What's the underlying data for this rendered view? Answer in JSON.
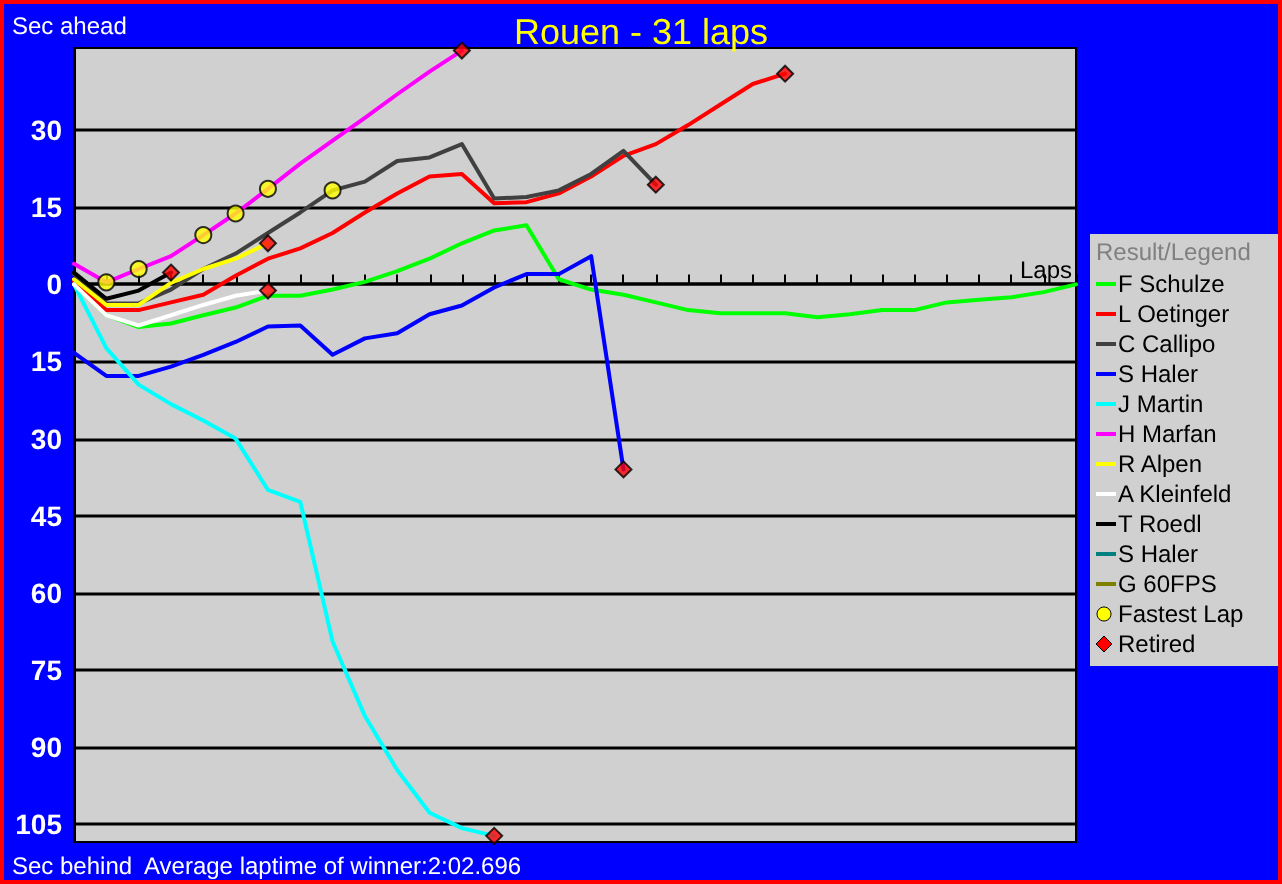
{
  "chart_data": {
    "type": "line",
    "title": "Rouen - 31 laps",
    "ylabel": "Sec ahead",
    "xlabel": "Laps",
    "legend_title": "Result/Legend",
    "annotations": [
      "Sec behind",
      "Average laptime of winner:2:02.696"
    ],
    "categories": [
      null,
      null,
      null,
      null,
      null,
      null,
      null,
      null,
      null,
      null,
      null,
      null,
      null,
      null,
      null,
      null,
      null,
      null,
      null,
      null,
      null,
      null,
      null,
      null,
      null,
      null,
      null,
      null,
      null,
      null,
      null,
      null
    ],
    "series": [
      {
        "name": "F Schulze",
        "color": "#00ff00",
        "values": [
          0,
          -6,
          -8.3,
          -7.6,
          -6,
          -4.5,
          -2.2,
          -2.2,
          -1,
          0.5,
          2.6,
          5,
          8,
          10.5,
          11.5,
          1,
          -1,
          -2,
          -3.5,
          -5,
          -5.6,
          -5.6,
          -5.6,
          -6.4,
          -5.8,
          -5,
          -5,
          -3.5,
          -3,
          -2.5,
          -1.5,
          0
        ]
      },
      {
        "name": "L Oetinger",
        "color": "#ff0000",
        "values": [
          0.6,
          -5,
          -5,
          -3.5,
          -2,
          1.7,
          5,
          7,
          10,
          14,
          17.7,
          21,
          21.5,
          15.8,
          16,
          17.7,
          21,
          25,
          27.3,
          31,
          35,
          39,
          41,
          null,
          null,
          null,
          null,
          null,
          null,
          null,
          null,
          null
        ]
      },
      {
        "name": "C Callipo",
        "color": "#404040",
        "values": [
          2,
          -3.7,
          -3.7,
          -1,
          3,
          6,
          10,
          14,
          18.3,
          20,
          24,
          24.7,
          27.3,
          16.7,
          17,
          18.3,
          21.5,
          26,
          19.4,
          null,
          null,
          null,
          null,
          null,
          null,
          null,
          null,
          null,
          null,
          null,
          null,
          null
        ]
      },
      {
        "name": "S Haler",
        "color": "#0000ff",
        "values": [
          -13.3,
          -17.8,
          -17.8,
          -16,
          -13.7,
          -11.2,
          -8.2,
          -8,
          -13.7,
          -10.5,
          -9.5,
          -5.8,
          -4.1,
          -0.6,
          2,
          2,
          5.5,
          -36,
          null,
          null,
          null,
          null,
          null,
          null,
          null,
          null,
          null,
          null,
          null,
          null,
          null,
          null
        ]
      },
      {
        "name": "J Martin",
        "color": "#00ffff",
        "values": [
          0,
          -12.4,
          -19.5,
          -23.3,
          -26.5,
          -30,
          -40,
          -42.3,
          -69.5,
          -84,
          -94.5,
          -102.8,
          -105.8,
          -107.3,
          null,
          null,
          null,
          null,
          null,
          null,
          null,
          null,
          null,
          null,
          null,
          null,
          null,
          null,
          null,
          null,
          null,
          null
        ]
      },
      {
        "name": "H Marfan",
        "color": "#ff00ff",
        "values": [
          4,
          0.4,
          3,
          5.5,
          9.6,
          13.8,
          18.6,
          23.5,
          28,
          32.4,
          37,
          41.4,
          45.5,
          null,
          null,
          null,
          null,
          null,
          null,
          null,
          null,
          null,
          null,
          null,
          null,
          null,
          null,
          null,
          null,
          null,
          null,
          null
        ]
      },
      {
        "name": "R Alpen",
        "color": "#ffff00",
        "values": [
          1,
          -4,
          -4,
          0.3,
          3,
          5,
          8,
          null,
          null,
          null,
          null,
          null,
          null,
          null,
          null,
          null,
          null,
          null,
          null,
          null,
          null,
          null,
          null,
          null,
          null,
          null,
          null,
          null,
          null,
          null,
          null,
          null
        ]
      },
      {
        "name": "A Kleinfeld",
        "color": "#ffffff",
        "values": [
          0,
          -6,
          -8,
          -6,
          -4,
          -2.2,
          -1.2,
          null,
          null,
          null,
          null,
          null,
          null,
          null,
          null,
          null,
          null,
          null,
          null,
          null,
          null,
          null,
          null,
          null,
          null,
          null,
          null,
          null,
          null,
          null,
          null,
          null
        ]
      },
      {
        "name": "T Roedl",
        "color": "#000000",
        "values": [
          2.3,
          -2.8,
          -1.2,
          2.3,
          null,
          null,
          null,
          null,
          null,
          null,
          null,
          null,
          null,
          null,
          null,
          null,
          null,
          null,
          null,
          null,
          null,
          null,
          null,
          null,
          null,
          null,
          null,
          null,
          null,
          null,
          null,
          null
        ]
      },
      {
        "name": "S Haler",
        "color": "#008080",
        "values": [
          null,
          null,
          null,
          null,
          null,
          null,
          null,
          null,
          null,
          null,
          null,
          null,
          null,
          null,
          null,
          null,
          null,
          null,
          null,
          null,
          null,
          null,
          null,
          null,
          null,
          null,
          null,
          null,
          null,
          null,
          null,
          null
        ]
      },
      {
        "name": "G 60FPS",
        "color": "#808000",
        "values": [
          null,
          null,
          null,
          null,
          null,
          null,
          null,
          null,
          null,
          null,
          null,
          null,
          null,
          null,
          null,
          null,
          null,
          null,
          null,
          null,
          null,
          null,
          null,
          null,
          null,
          null,
          null,
          null,
          null,
          null,
          null,
          null
        ]
      },
      {
        "name": "Fastest Lap",
        "type": "scatter",
        "marker": "circle",
        "color": "#ffff00",
        "values": [
          null,
          0.4,
          3,
          null,
          9.6,
          13.8,
          18.6,
          null,
          18.3,
          null,
          null,
          null,
          null,
          null,
          null,
          null,
          null,
          null,
          null,
          null,
          null,
          null,
          null,
          null,
          null,
          null,
          null,
          null,
          null,
          null,
          null,
          null
        ]
      },
      {
        "name": "Retired",
        "type": "scatter",
        "marker": "diamond",
        "color": "#ff0000",
        "values": [
          null,
          null,
          null,
          2.3,
          null,
          null,
          8,
          null,
          null,
          null,
          null,
          null,
          45.5,
          -107.3,
          null,
          null,
          null,
          -36,
          19.4,
          null,
          null,
          null,
          41,
          null,
          null,
          null,
          null,
          null,
          null,
          null,
          null,
          null
        ]
      },
      {
        "type": "scatter",
        "marker": "diamond",
        "color": "#ff0000",
        "values": [
          null,
          null,
          null,
          null,
          null,
          null,
          -1.2,
          null,
          null,
          null,
          null,
          null,
          null,
          null,
          null,
          null,
          null,
          null,
          null,
          null,
          null,
          null,
          null,
          null,
          null,
          null,
          null,
          null,
          null,
          null,
          null,
          null
        ]
      }
    ],
    "marker": "none",
    "line_style": "solid",
    "ylim": [
      -108.5,
      46
    ],
    "yticks": [
      {
        "value": 30,
        "label": "30"
      },
      {
        "value": 15,
        "label": "15"
      },
      0,
      {
        "value": -15,
        "label": "15"
      },
      {
        "value": -30,
        "label": "30"
      },
      {
        "value": -45,
        "label": "45"
      },
      {
        "value": -60,
        "label": "60"
      },
      {
        "value": -75,
        "label": "75"
      },
      {
        "value": -90,
        "label": "90"
      },
      {
        "value": -105,
        "label": "105"
      }
    ],
    "tick_labels": "y",
    "grid": "y",
    "legend": "right"
  }
}
